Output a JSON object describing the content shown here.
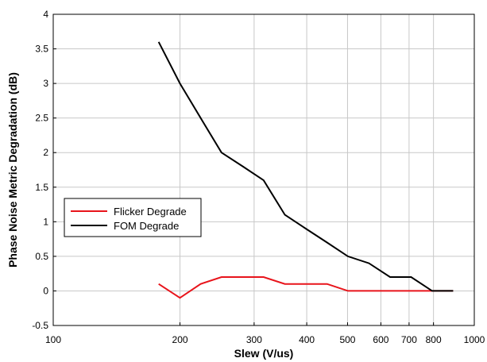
{
  "chart_data": {
    "type": "line",
    "title": "",
    "xlabel": "Slew (V/us)",
    "ylabel": "Phase Noise Metric Degradation (dB)",
    "x_scale": "log",
    "xlim": [
      100,
      1000
    ],
    "ylim": [
      -0.5,
      4
    ],
    "grid": true,
    "legend_position": "center-left",
    "x_ticks": [
      100,
      200,
      300,
      400,
      500,
      600,
      700,
      800,
      1000
    ],
    "x_tick_labels": [
      "100",
      "200",
      "300",
      "400",
      "500",
      "600",
      "700",
      "800",
      "1000"
    ],
    "y_ticks": [
      -0.5,
      0,
      0.5,
      1,
      1.5,
      2,
      2.5,
      3,
      3.5,
      4
    ],
    "y_tick_labels": [
      "-0.5",
      "0",
      "0.5",
      "1",
      "1.5",
      "2",
      "2.5",
      "3",
      "3.5",
      "4"
    ],
    "series": [
      {
        "name": "Flicker Degrade",
        "color": "#e8141b",
        "x": [
          178,
          200,
          224,
          251,
          282,
          316,
          355,
          398,
          447,
          501,
          562,
          631,
          708,
          794,
          891
        ],
        "y": [
          0.1,
          -0.1,
          0.1,
          0.2,
          0.2,
          0.2,
          0.1,
          0.1,
          0.1,
          0.0,
          0.0,
          0.0,
          0.0,
          0.0,
          0.0
        ]
      },
      {
        "name": "FOM Degrade",
        "color": "#000000",
        "x": [
          178,
          200,
          224,
          251,
          282,
          316,
          355,
          398,
          447,
          501,
          562,
          631,
          708,
          794,
          891
        ],
        "y": [
          3.6,
          3.0,
          2.5,
          2.0,
          1.8,
          1.6,
          1.1,
          0.9,
          0.7,
          0.5,
          0.4,
          0.2,
          0.2,
          0.0,
          0.0
        ]
      }
    ]
  }
}
